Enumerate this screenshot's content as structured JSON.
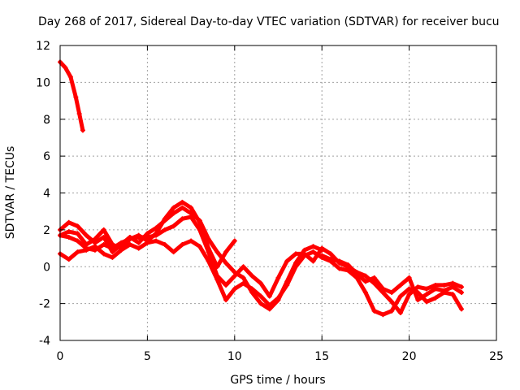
{
  "chart_data": {
    "type": "line",
    "title": "Day 268 of 2017, Sidereal Day-to-day VTEC variation (SDTVAR) for receiver bucu",
    "xlabel": "GPS time / hours",
    "ylabel": "SDTVAR / TECUs",
    "xlim": [
      0,
      25
    ],
    "ylim": [
      -4,
      12
    ],
    "xticks": [
      0,
      5,
      10,
      15,
      20,
      25
    ],
    "yticks": [
      -4,
      -2,
      0,
      2,
      4,
      6,
      8,
      10,
      12
    ],
    "grid": true,
    "color": "#ff0000",
    "series": [
      {
        "name": "trace-1",
        "x": [
          0,
          0.3,
          0.6,
          0.9,
          1.1,
          1.3
        ],
        "y": [
          11.1,
          10.8,
          10.3,
          9.2,
          8.3,
          7.4
        ]
      },
      {
        "name": "trace-2",
        "x": [
          0,
          0.5,
          1,
          1.5,
          2,
          2.5,
          3,
          3.5,
          4,
          4.5,
          5,
          5.5,
          6,
          6.5,
          7,
          7.5,
          8,
          8.5,
          9,
          9.5,
          10
        ],
        "y": [
          1.7,
          1.9,
          1.8,
          1.2,
          1.5,
          2.0,
          1.2,
          1.0,
          1.5,
          1.7,
          1.4,
          1.8,
          2.6,
          3.2,
          3.5,
          3.2,
          2.4,
          1.0,
          0.0,
          0.8,
          1.4
        ]
      },
      {
        "name": "trace-3",
        "x": [
          0,
          0.5,
          1,
          1.5,
          2,
          2.5,
          3,
          3.5,
          4,
          4.5,
          5,
          5.5,
          6,
          6.5,
          7,
          7.5,
          8,
          8.5,
          9,
          9.5,
          10,
          10.5,
          11,
          11.5,
          12,
          12.5,
          13,
          13.5,
          14,
          14.5,
          15
        ],
        "y": [
          2.0,
          2.4,
          2.2,
          1.7,
          1.3,
          1.6,
          0.8,
          1.2,
          1.6,
          1.3,
          1.8,
          2.1,
          2.5,
          2.9,
          3.2,
          2.9,
          2.5,
          1.5,
          0.8,
          0.2,
          -0.3,
          -0.6,
          -1.4,
          -2.0,
          -2.3,
          -1.8,
          -0.8,
          0.2,
          0.9,
          1.1,
          0.9
        ]
      },
      {
        "name": "trace-4",
        "x": [
          0,
          0.5,
          1,
          1.5,
          2,
          2.5,
          3,
          3.5,
          4,
          4.5,
          5,
          5.5,
          6,
          6.5,
          7,
          7.5,
          8,
          8.5,
          9,
          9.5,
          10,
          10.5,
          11,
          11.5,
          12,
          12.5,
          13,
          13.5,
          14,
          14.5,
          15,
          15.5,
          16,
          16.5,
          17,
          17.5,
          18,
          18.5,
          19,
          19.5,
          20,
          20.5,
          21,
          21.5,
          22,
          22.5,
          23
        ],
        "y": [
          1.7,
          1.6,
          1.4,
          1.0,
          0.9,
          1.2,
          1.0,
          1.3,
          1.5,
          1.6,
          1.6,
          1.7,
          2.0,
          2.2,
          2.6,
          2.7,
          2.0,
          0.8,
          -0.5,
          -1.0,
          -0.5,
          0.0,
          -0.5,
          -0.9,
          -1.6,
          -0.6,
          0.3,
          0.7,
          0.7,
          0.3,
          1.0,
          0.7,
          0.2,
          0.0,
          -0.3,
          -0.5,
          -0.9,
          -1.4,
          -1.9,
          -2.5,
          -1.5,
          -1.1,
          -1.2,
          -1.0,
          -1.0,
          -0.9,
          -1.1
        ]
      },
      {
        "name": "trace-5",
        "x": [
          0,
          0.5,
          1,
          1.5,
          2,
          2.5,
          3,
          3.5,
          4,
          4.5,
          5,
          5.5,
          6,
          6.5,
          7,
          7.5,
          8,
          8.5,
          9,
          9.5,
          10,
          10.5,
          11,
          11.5,
          12,
          12.5,
          13,
          13.5,
          14,
          14.5,
          15,
          15.5,
          16,
          16.5,
          17,
          17.5,
          18,
          18.5,
          19,
          19.5,
          20,
          20.5,
          21,
          21.5,
          22,
          22.5,
          23
        ],
        "y": [
          0.7,
          0.4,
          0.8,
          0.9,
          1.1,
          0.7,
          0.5,
          0.9,
          1.2,
          1.0,
          1.3,
          1.4,
          1.2,
          0.8,
          1.2,
          1.4,
          1.1,
          0.3,
          -0.7,
          -1.8,
          -1.2,
          -0.9,
          -1.2,
          -1.6,
          -2.1,
          -1.7,
          -1.0,
          0.0,
          0.6,
          0.8,
          0.5,
          0.3,
          -0.1,
          -0.2,
          -0.6,
          -1.4,
          -2.4,
          -2.6,
          -2.4,
          -1.6,
          -1.2,
          -1.4,
          -1.9,
          -1.7,
          -1.4,
          -1.5,
          -2.3
        ]
      },
      {
        "name": "trace-6",
        "x": [
          15,
          15.5,
          16,
          16.5,
          17,
          17.5,
          18,
          18.5,
          19,
          19.5,
          20,
          20.5,
          21,
          21.5,
          22,
          22.5,
          23
        ],
        "y": [
          0.6,
          0.4,
          0.3,
          0.1,
          -0.4,
          -0.8,
          -0.6,
          -1.2,
          -1.4,
          -1.0,
          -0.6,
          -1.8,
          -1.5,
          -1.2,
          -1.3,
          -1.1,
          -1.4
        ]
      }
    ]
  }
}
